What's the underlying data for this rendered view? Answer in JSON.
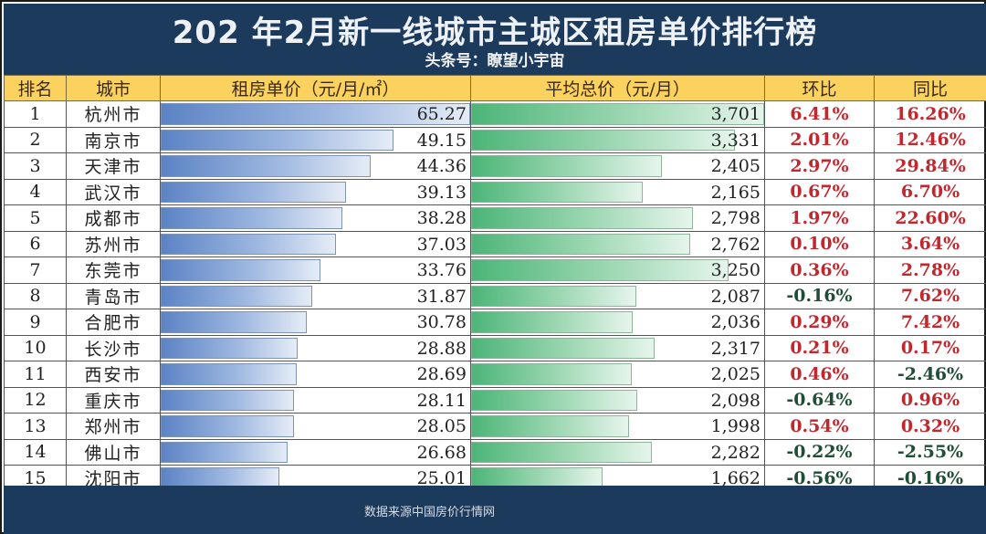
{
  "header": {
    "title": "202 年2月新一线城市主城区租房单价排行榜",
    "subtitle": "头条号：瞭望小宇宙"
  },
  "table": {
    "columns": [
      "排名",
      "城市",
      "租房单价（元/月/㎡）",
      "平均总价（元/月）",
      "环比",
      "同比"
    ],
    "rows": [
      {
        "rank": "1",
        "city": "杭州市",
        "unit_price": "65.27",
        "avg_total": "3,701",
        "mom": "6.41%",
        "yoy": "16.26%"
      },
      {
        "rank": "2",
        "city": "南京市",
        "unit_price": "49.15",
        "avg_total": "3,331",
        "mom": "2.01%",
        "yoy": "12.46%"
      },
      {
        "rank": "3",
        "city": "天津市",
        "unit_price": "44.36",
        "avg_total": "2,405",
        "mom": "2.97%",
        "yoy": "29.84%"
      },
      {
        "rank": "4",
        "city": "武汉市",
        "unit_price": "39.13",
        "avg_total": "2,165",
        "mom": "0.67%",
        "yoy": "6.70%"
      },
      {
        "rank": "5",
        "city": "成都市",
        "unit_price": "38.28",
        "avg_total": "2,798",
        "mom": "1.97%",
        "yoy": "22.60%"
      },
      {
        "rank": "6",
        "city": "苏州市",
        "unit_price": "37.03",
        "avg_total": "2,762",
        "mom": "0.10%",
        "yoy": "3.64%"
      },
      {
        "rank": "7",
        "city": "东莞市",
        "unit_price": "33.76",
        "avg_total": "3,250",
        "mom": "0.36%",
        "yoy": "2.78%"
      },
      {
        "rank": "8",
        "city": "青岛市",
        "unit_price": "31.87",
        "avg_total": "2,087",
        "mom": "-0.16%",
        "yoy": "7.62%"
      },
      {
        "rank": "9",
        "city": "合肥市",
        "unit_price": "30.78",
        "avg_total": "2,036",
        "mom": "0.29%",
        "yoy": "7.42%"
      },
      {
        "rank": "10",
        "city": "长沙市",
        "unit_price": "28.88",
        "avg_total": "2,317",
        "mom": "0.21%",
        "yoy": "0.17%"
      },
      {
        "rank": "11",
        "city": "西安市",
        "unit_price": "28.69",
        "avg_total": "2,025",
        "mom": "0.46%",
        "yoy": "-2.46%"
      },
      {
        "rank": "12",
        "city": "重庆市",
        "unit_price": "28.11",
        "avg_total": "2,098",
        "mom": "-0.64%",
        "yoy": "0.96%"
      },
      {
        "rank": "13",
        "city": "郑州市",
        "unit_price": "28.05",
        "avg_total": "1,998",
        "mom": "0.54%",
        "yoy": "0.32%"
      },
      {
        "rank": "14",
        "city": "佛山市",
        "unit_price": "26.68",
        "avg_total": "2,282",
        "mom": "-0.22%",
        "yoy": "-2.55%"
      },
      {
        "rank": "15",
        "city": "沈阳市",
        "unit_price": "25.01",
        "avg_total": "1,662",
        "mom": "-0.56%",
        "yoy": "-0.16%"
      }
    ]
  },
  "footer": {
    "source": "数据来源中国房价行情网"
  },
  "colors": {
    "title_bg": "#1b3a5c",
    "header_bg": "#fcd25f",
    "positive": "#c0282e",
    "negative": "#1f4d35",
    "bar_unit": "#5b83c4",
    "bar_total": "#4cb577"
  },
  "chart_data": {
    "type": "table",
    "title": "202 年2月新一线城市主城区租房单价排行榜",
    "subtitle": "头条号：瞭望小宇宙",
    "columns": [
      "排名",
      "城市",
      "租房单价（元/月/㎡）",
      "平均总价（元/月）",
      "环比",
      "同比"
    ],
    "categories": [
      "杭州市",
      "南京市",
      "天津市",
      "武汉市",
      "成都市",
      "苏州市",
      "东莞市",
      "青岛市",
      "合肥市",
      "长沙市",
      "西安市",
      "重庆市",
      "郑州市",
      "佛山市",
      "沈阳市"
    ],
    "series": [
      {
        "name": "租房单价（元/月/㎡）",
        "values": [
          65.27,
          49.15,
          44.36,
          39.13,
          38.28,
          37.03,
          33.76,
          31.87,
          30.78,
          28.88,
          28.69,
          28.11,
          28.05,
          26.68,
          25.01
        ]
      },
      {
        "name": "平均总价（元/月）",
        "values": [
          3701,
          3331,
          2405,
          2165,
          2798,
          2762,
          3250,
          2087,
          2036,
          2317,
          2025,
          2098,
          1998,
          2282,
          1662
        ]
      },
      {
        "name": "环比 (%)",
        "values": [
          6.41,
          2.01,
          2.97,
          0.67,
          1.97,
          0.1,
          0.36,
          -0.16,
          0.29,
          0.21,
          0.46,
          -0.64,
          0.54,
          -0.22,
          -0.56
        ]
      },
      {
        "name": "同比 (%)",
        "values": [
          16.26,
          12.46,
          29.84,
          6.7,
          22.6,
          3.64,
          2.78,
          7.62,
          7.42,
          0.17,
          -2.46,
          0.96,
          0.32,
          -2.55,
          -0.16
        ]
      }
    ],
    "note": "数据来源中国房价行情网"
  }
}
